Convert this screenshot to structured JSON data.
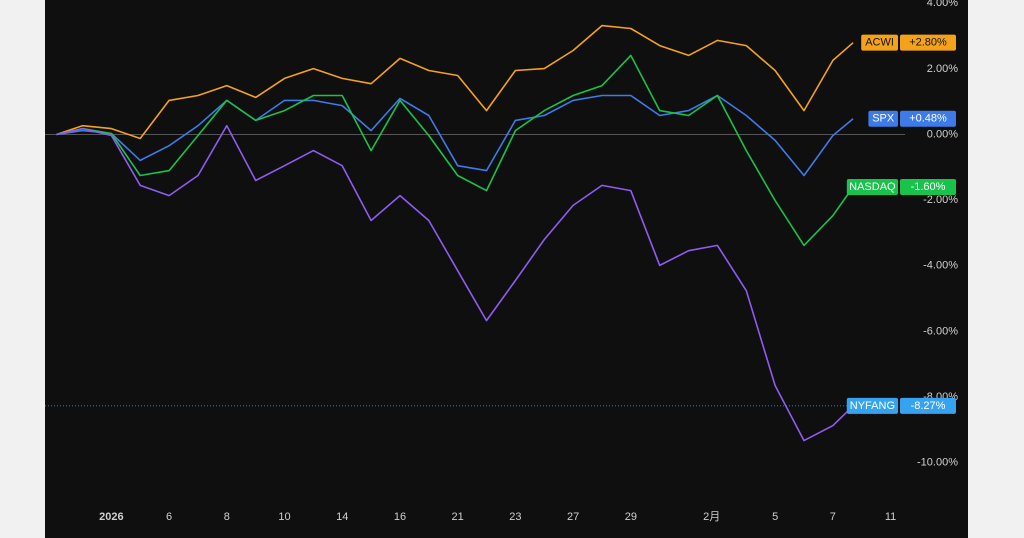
{
  "chart_data": {
    "type": "line",
    "x": [
      -1.9,
      -1,
      0,
      1,
      2,
      3,
      4,
      5,
      6,
      7,
      8,
      9,
      10,
      11,
      12,
      13,
      14,
      15,
      16,
      17,
      18,
      19,
      20,
      21,
      22,
      23,
      24,
      25,
      25.7
    ],
    "xlim": [
      -2.3,
      27.5
    ],
    "xticks": [
      {
        "value": 0,
        "label": "2026"
      },
      {
        "value": 2,
        "label": "6"
      },
      {
        "value": 4,
        "label": "8"
      },
      {
        "value": 6,
        "label": "10"
      },
      {
        "value": 8,
        "label": "14"
      },
      {
        "value": 10,
        "label": "16"
      },
      {
        "value": 12,
        "label": "21"
      },
      {
        "value": 14,
        "label": "23"
      },
      {
        "value": 16,
        "label": "27"
      },
      {
        "value": 18,
        "label": "29"
      },
      {
        "value": 20.8,
        "label": "2月"
      },
      {
        "value": 23,
        "label": "5"
      },
      {
        "value": 25,
        "label": "7"
      },
      {
        "value": 27,
        "label": "11"
      }
    ],
    "ylim": [
      -11.2,
      4.1
    ],
    "yticks": [
      {
        "value": 4,
        "label": "4.00%"
      },
      {
        "value": 2,
        "label": "2.00%"
      },
      {
        "value": 0,
        "label": "0.00%"
      },
      {
        "value": -2,
        "label": "-2.00%"
      },
      {
        "value": -4,
        "label": "-4.00%"
      },
      {
        "value": -6,
        "label": "-6.00%"
      },
      {
        "value": -8,
        "label": "-8.00%"
      },
      {
        "value": -10,
        "label": "-10.00%"
      }
    ],
    "series": [
      {
        "name": "ACWI",
        "color": "#f5a21b",
        "end_label": {
          "value": 2.8,
          "label": "+2.80%"
        },
        "values": [
          0,
          0.27,
          0.18,
          -0.12,
          1.04,
          1.19,
          1.49,
          1.13,
          1.71,
          2.01,
          1.71,
          1.55,
          2.32,
          1.95,
          1.8,
          0.73,
          1.95,
          2.01,
          2.56,
          3.32,
          3.23,
          2.71,
          2.41,
          2.87,
          2.71,
          1.95,
          0.73,
          2.26,
          2.8
        ]
      },
      {
        "name": "SPX",
        "color": "#3d7be8",
        "end_label": {
          "value": 0.48,
          "label": "+0.48%"
        },
        "values": [
          0,
          0.12,
          0.03,
          -0.79,
          -0.34,
          0.27,
          1.04,
          0.43,
          1.04,
          1.04,
          0.88,
          0.12,
          1.1,
          0.58,
          -0.95,
          -1.1,
          0.43,
          0.58,
          1.04,
          1.19,
          1.19,
          0.58,
          0.73,
          1.19,
          0.58,
          -0.18,
          -1.25,
          -0.03,
          0.48
        ]
      },
      {
        "name": "NASDAQ",
        "color": "#19c24a",
        "end_label": {
          "value": -1.6,
          "label": "-1.60%"
        },
        "values": [
          0,
          0.18,
          0.03,
          -1.25,
          -1.1,
          -0.03,
          1.04,
          0.43,
          0.73,
          1.19,
          1.19,
          -0.49,
          1.04,
          -0.03,
          -1.25,
          -1.71,
          0.12,
          0.73,
          1.19,
          1.49,
          2.41,
          0.73,
          0.58,
          1.19,
          -0.49,
          -2.01,
          -3.38,
          -2.47,
          -1.6
        ]
      },
      {
        "name": "NYFANG",
        "color": "#8f5cf2",
        "badge_color": "#35a3f0",
        "end_label": {
          "value": -8.27,
          "label": "-8.27%"
        },
        "values": [
          0,
          0.18,
          -0.03,
          -1.55,
          -1.86,
          -1.25,
          0.27,
          -1.4,
          -0.95,
          -0.49,
          -0.95,
          -2.62,
          -1.86,
          -2.62,
          -4.15,
          -5.67,
          -4.45,
          -3.2,
          -2.16,
          -1.55,
          -1.71,
          -3.99,
          -3.54,
          -3.38,
          -4.76,
          -7.65,
          -9.33,
          -8.87,
          -8.27
        ]
      }
    ]
  }
}
